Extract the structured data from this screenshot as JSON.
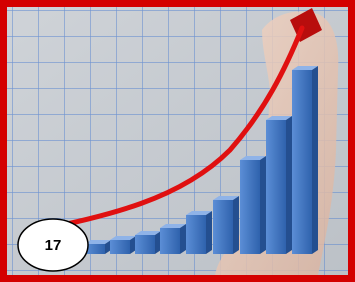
{
  "badge": {
    "label": "17"
  }
}
